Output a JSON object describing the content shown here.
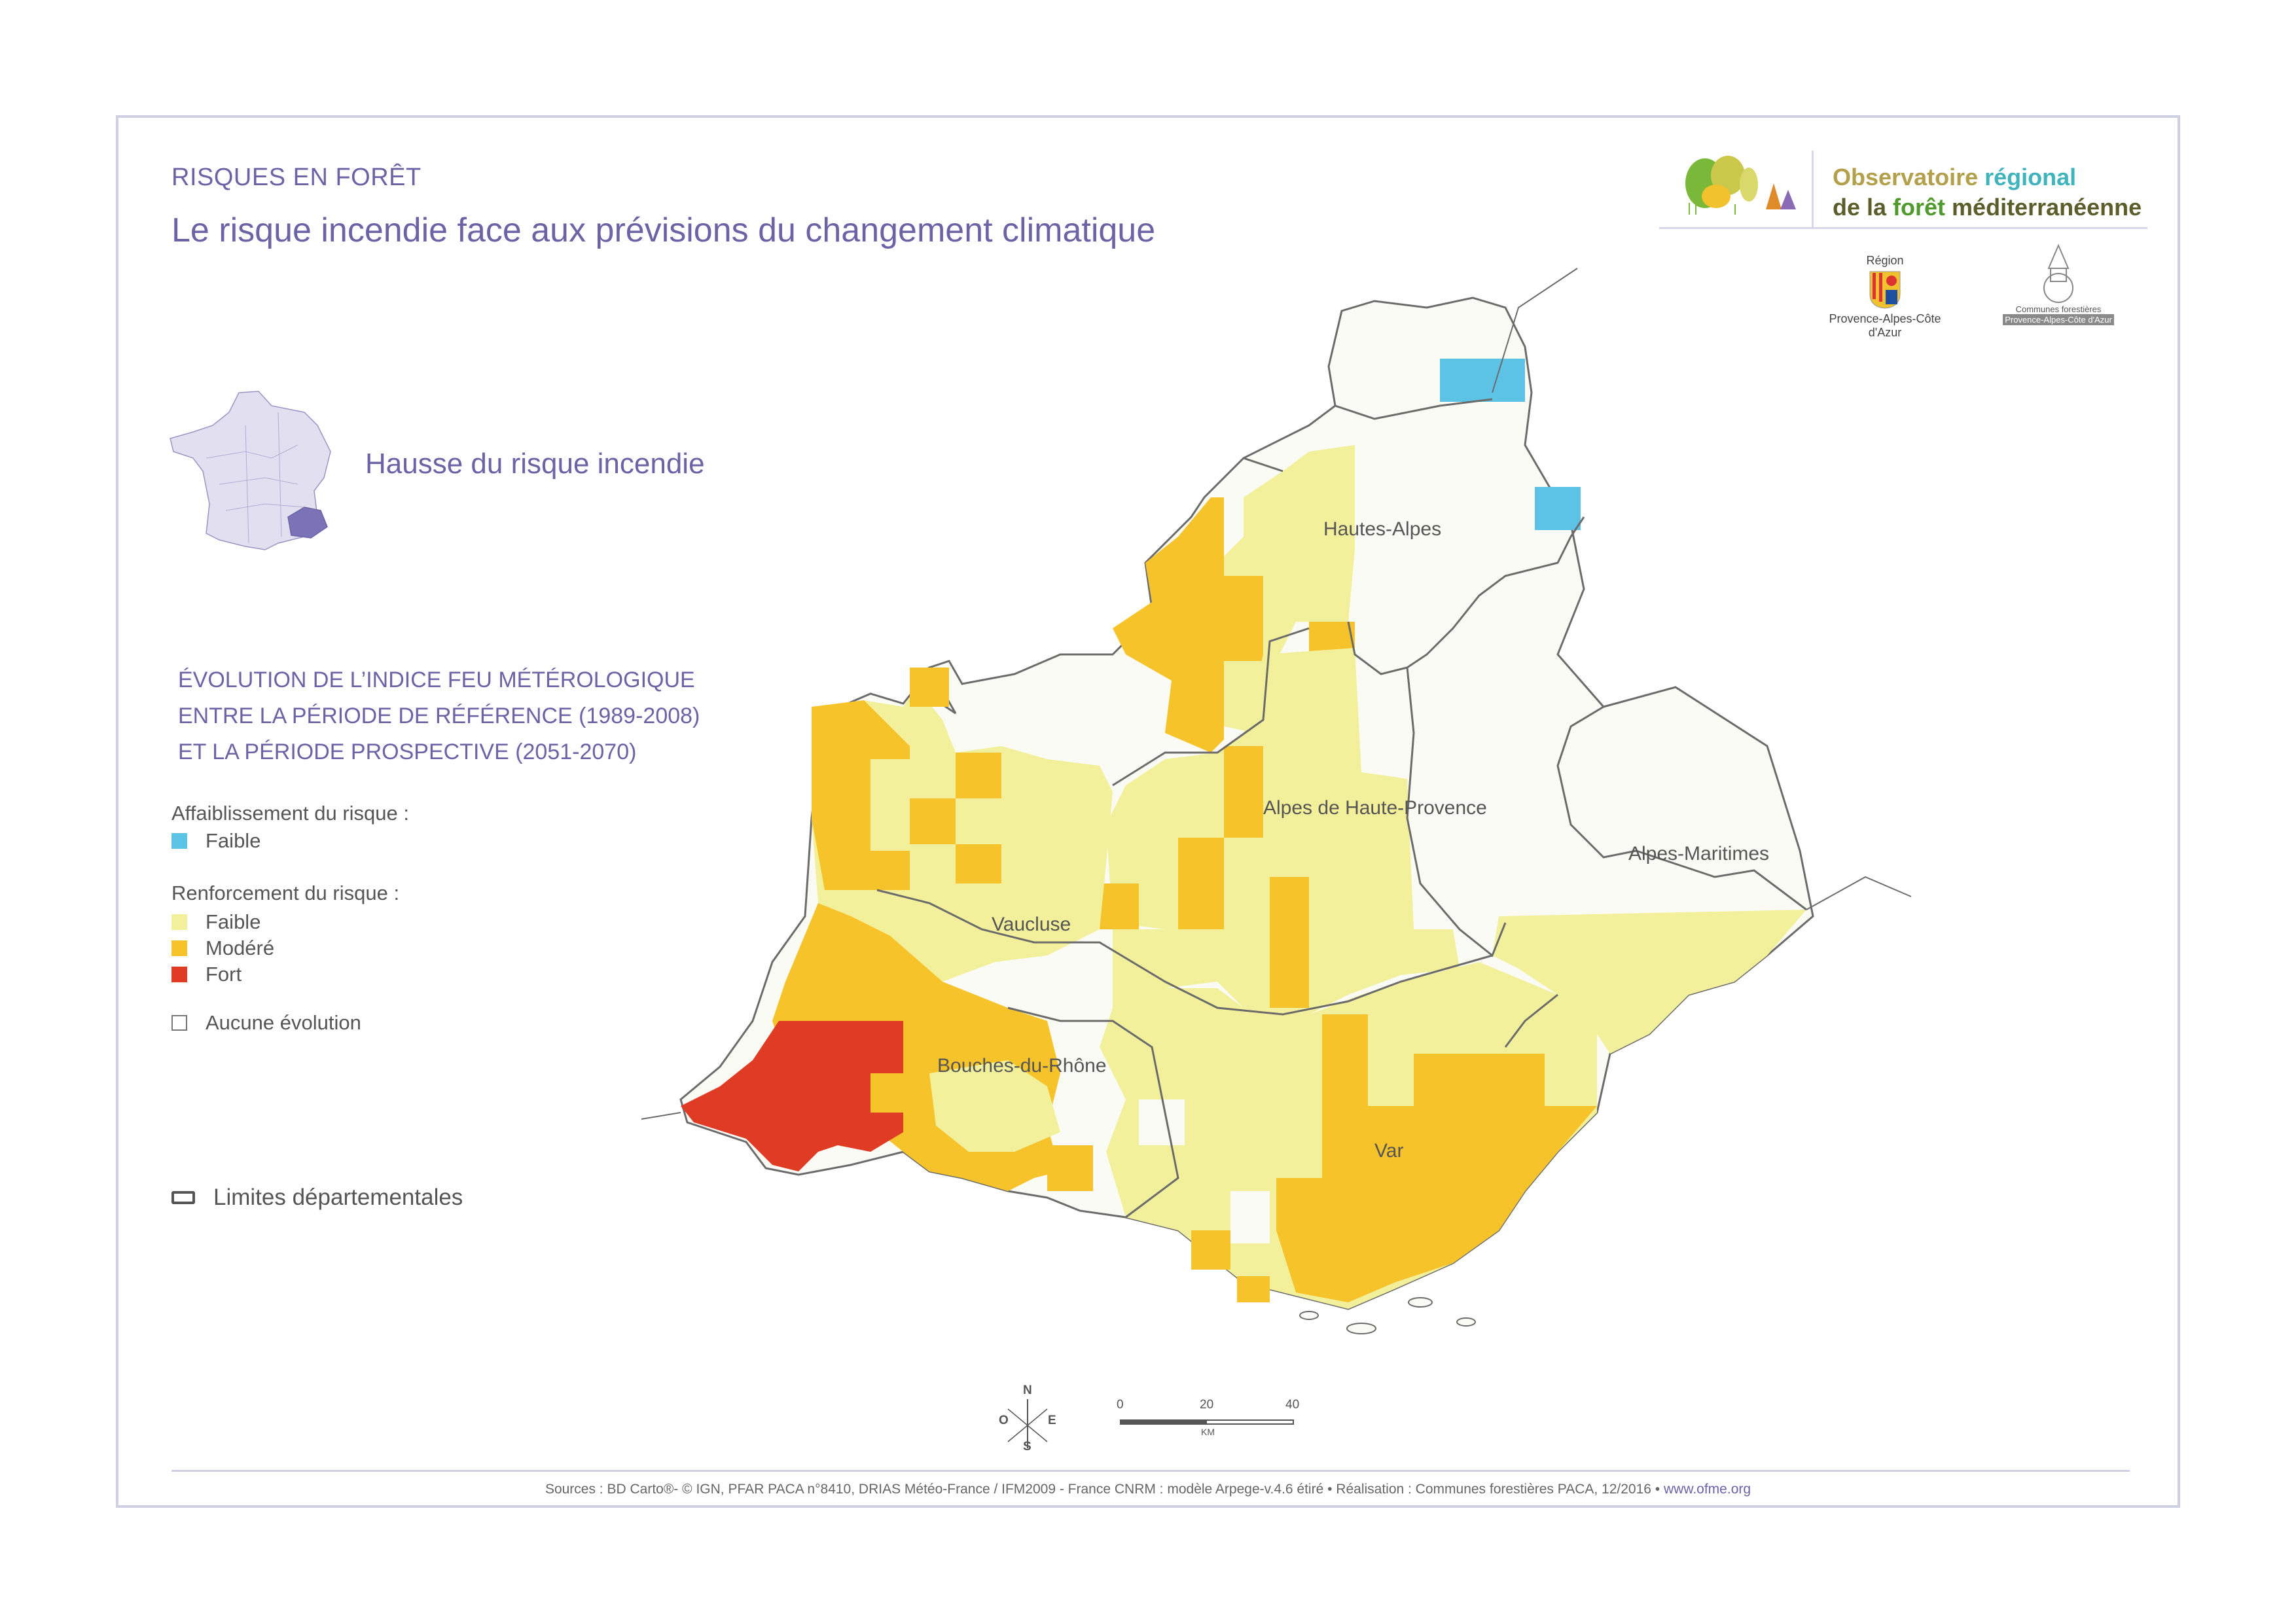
{
  "header": {
    "category": "RISQUES EN FORÊT",
    "title": "Le risque incendie face aux prévisions du changement climatique"
  },
  "logo": {
    "line1_a": "Observatoire ",
    "line1_b": "régional",
    "line2_a": "de la ",
    "line2_b": "forêt ",
    "line2_c": "méditerranéenne",
    "colors": {
      "olive": "#b2a04a",
      "teal": "#3fb4bd",
      "dark": "#5b5e2a",
      "green": "#4f9a2d"
    }
  },
  "partners": {
    "region_top": "Région",
    "region_name": "Provence-Alpes-Côte d'Azur",
    "communes_line1": "Communes forestières",
    "communes_line2": "Provence-Alpes-Côte d'Azur"
  },
  "inset": {
    "label": "Hausse du risque incendie"
  },
  "legend": {
    "evolution_lines": [
      "ÉVOLUTION DE L’INDICE FEU MÉTÉROLOGIQUE",
      "ENTRE LA PÉRIODE DE RÉFÉRENCE (1989-2008)",
      "ET LA PÉRIODE PROSPECTIVE (2051-2070)"
    ],
    "weakening_title": "Affaiblissement du risque :",
    "weakening_items": [
      {
        "label": "Faible",
        "color": "#5cc2e6"
      }
    ],
    "strengthening_title": "Renforcement du risque :",
    "strengthening_items": [
      {
        "label": "Faible",
        "color": "#f3f09c"
      },
      {
        "label": "Modéré",
        "color": "#f7c32a"
      },
      {
        "label": "Fort",
        "color": "#e03b24"
      }
    ],
    "none_label": "Aucune évolution",
    "limits_label": "Limites départementales"
  },
  "map": {
    "departments": [
      "Hautes-Alpes",
      "Alpes de Haute-Provence",
      "Alpes-Maritimes",
      "Vaucluse",
      "Bouches-du-Rhône",
      "Var"
    ],
    "colors": {
      "none": "#fbfbf5",
      "faible": "#f3f09c",
      "modere": "#f7c32a",
      "fort": "#e03b24",
      "affaibli": "#5cc2e6",
      "border": "#6b6b6b"
    }
  },
  "compass": {
    "n": "N",
    "s": "S",
    "e": "E",
    "o": "O"
  },
  "scale": {
    "ticks": [
      "0",
      "20",
      "40"
    ],
    "unit": "KM"
  },
  "footer": {
    "sources": "Sources : BD Carto®- © IGN, PFAR PACA n°8410,  DRIAS Météo-France / IFM2009 - France CNRM : modèle Arpege-v.4.6 étiré • Réalisation : Communes forestières PACA, 12/2016 • ",
    "link": "www.ofme.org"
  }
}
